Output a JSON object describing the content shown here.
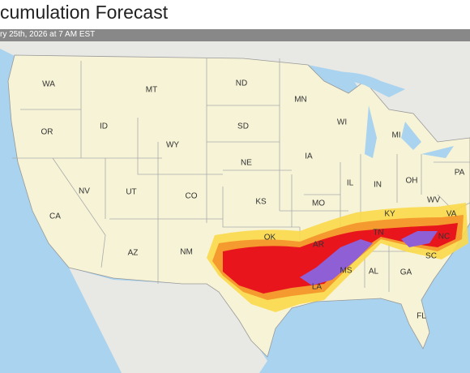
{
  "header": {
    "title": "cumulation Forecast",
    "subtitle": "ry 25th, 2026 at 7 AM EST"
  },
  "map": {
    "states": [
      "WA",
      "OR",
      "CA",
      "NV",
      "ID",
      "MT",
      "WY",
      "UT",
      "CO",
      "AZ",
      "NM",
      "ND",
      "SD",
      "NE",
      "KS",
      "OK",
      "MN",
      "IA",
      "MO",
      "AR",
      "WI",
      "IL",
      "MI",
      "IN",
      "OH",
      "KY",
      "TN",
      "MS",
      "AL",
      "GA",
      "LA",
      "FL",
      "PA",
      "WV",
      "VA",
      "NC",
      "SC"
    ]
  }
}
